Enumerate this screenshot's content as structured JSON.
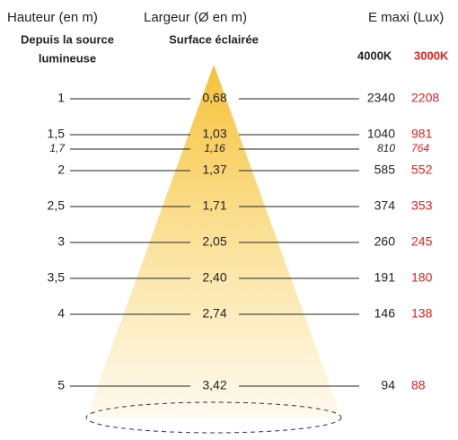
{
  "header": {
    "height_title": "Hauteur (en m)",
    "height_sub": [
      "Depuis la source",
      "lumineuse"
    ],
    "width_title": "Largeur (Ø en m)",
    "width_sub": "Surface éclairée",
    "lux_title": "E maxi (Lux)",
    "lux_4000": "4000K",
    "lux_3000": "3000K"
  },
  "rows": [
    {
      "height": "1",
      "width": "0,68",
      "lux_4000": "2340",
      "lux_3000": "2208"
    },
    {
      "height": "1,5",
      "width": "1,03",
      "lux_4000": "1040",
      "lux_3000": "981"
    },
    {
      "height": "1,7",
      "width": "1,16",
      "lux_4000": "810",
      "lux_3000": "764",
      "italic": true
    },
    {
      "height": "2",
      "width": "1,37",
      "lux_4000": "585",
      "lux_3000": "552"
    },
    {
      "height": "2,5",
      "width": "1,71",
      "lux_4000": "374",
      "lux_3000": "353"
    },
    {
      "height": "3",
      "width": "2,05",
      "lux_4000": "260",
      "lux_3000": "245"
    },
    {
      "height": "3,5",
      "width": "2,40",
      "lux_4000": "191",
      "lux_3000": "180"
    },
    {
      "height": "4",
      "width": "2,74",
      "lux_4000": "146",
      "lux_3000": "138"
    },
    {
      "height": "5",
      "width": "3,42",
      "lux_4000": "94",
      "lux_3000": "88"
    }
  ]
}
